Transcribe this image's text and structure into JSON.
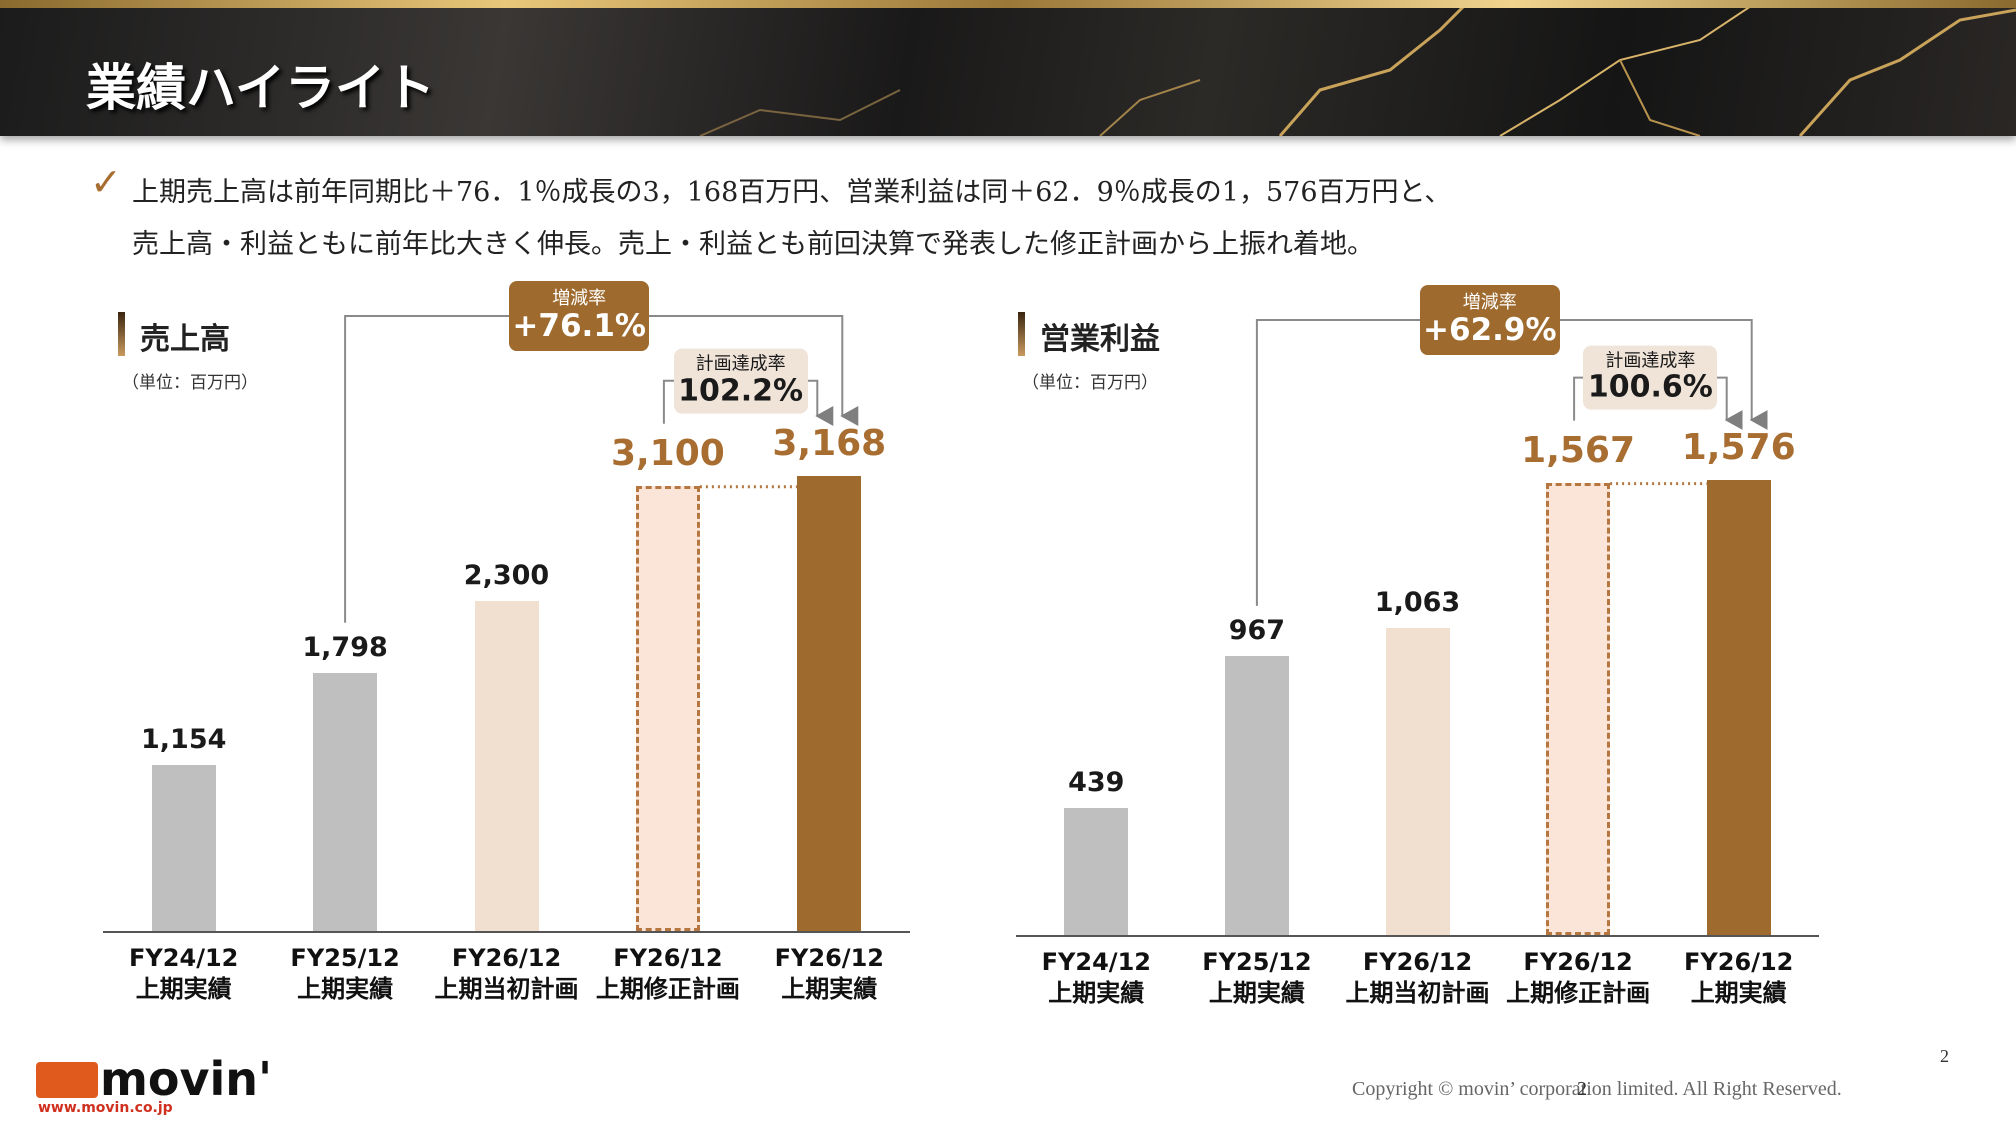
{
  "header": {
    "title": "業績ハイライト"
  },
  "summary": [
    "上期売上高は前年同期比＋76．1％成長の3，168百万円、営業利益は同＋62．9％成長の1，576百万円と、",
    "売上高・利益ともに前年比大きく伸長。売上・利益とも前回決算で発表した修正計画から上振れ着地。"
  ],
  "chart_data": [
    {
      "type": "bar",
      "title": "売上高",
      "unit": "（単位：百万円）",
      "categories": [
        "FY24/12\n上期実績",
        "FY25/12\n上期実績",
        "FY26/12\n上期当初計画",
        "FY26/12\n上期修正計画",
        "FY26/12\n上期実績"
      ],
      "values": [
        1154,
        1798,
        2300,
        3100,
        3168
      ],
      "value_labels": [
        "1,154",
        "1,798",
        "2,300",
        "3,100",
        "3,168"
      ],
      "colors": [
        "#bfbfbf",
        "#bfbfbf",
        "#f1e0cf",
        "#fbe5d9",
        "#9e6a2e"
      ],
      "bar_styles": [
        "solid",
        "solid",
        "solid",
        "dashed",
        "solid"
      ],
      "label_colors": [
        "#1a1a1a",
        "#1a1a1a",
        "#1a1a1a",
        "#a86d31",
        "#a86d31"
      ],
      "growth_label": "増減率",
      "growth": "+76.1%",
      "plan_label": "計画達成率",
      "plan": "102.2%"
    },
    {
      "type": "bar",
      "title": "営業利益",
      "unit": "（単位：百万円）",
      "categories": [
        "FY24/12\n上期実績",
        "FY25/12\n上期実績",
        "FY26/12\n上期当初計画",
        "FY26/12\n上期修正計画",
        "FY26/12\n上期実績"
      ],
      "values": [
        439,
        967,
        1063,
        1567,
        1576
      ],
      "value_labels": [
        "439",
        "967",
        "1,063",
        "1,567",
        "1,576"
      ],
      "colors": [
        "#bfbfbf",
        "#bfbfbf",
        "#f1e0cf",
        "#fbe5d9",
        "#9e6a2e"
      ],
      "bar_styles": [
        "solid",
        "solid",
        "solid",
        "dashed",
        "solid"
      ],
      "label_colors": [
        "#1a1a1a",
        "#1a1a1a",
        "#1a1a1a",
        "#a86d31",
        "#a86d31"
      ],
      "growth_label": "増減率",
      "growth": "+62.9%",
      "plan_label": "計画達成率",
      "plan": "100.6%"
    }
  ],
  "footer": {
    "logo": "movin'",
    "url": "www.movin.co.jp",
    "copyright": "Copyright © movin’ corporation limited. All Right Reserved.",
    "page": "2"
  }
}
